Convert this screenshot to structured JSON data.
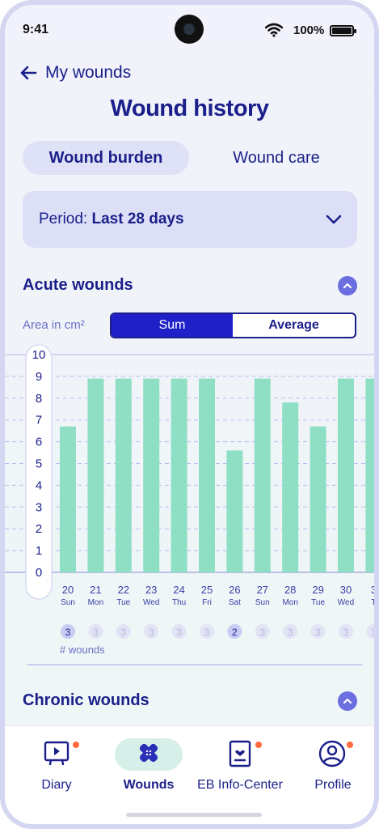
{
  "status_bar": {
    "time": "9:41",
    "battery": "100%"
  },
  "header": {
    "back_label": "My wounds",
    "title": "Wound history"
  },
  "tabs": [
    {
      "label": "Wound burden",
      "active": true
    },
    {
      "label": "Wound care",
      "active": false
    }
  ],
  "period": {
    "prefix": "Period: ",
    "value": "Last 28 days"
  },
  "acute": {
    "title": "Acute wounds",
    "area_label": "Area in cm²",
    "toggle": {
      "sum": "Sum",
      "average": "Average",
      "selected": "Sum"
    },
    "wounds_label": "# wounds"
  },
  "chronic": {
    "title": "Chronic wounds"
  },
  "chart_data": {
    "type": "bar",
    "ylim": [
      0,
      10
    ],
    "yticks": [
      "10",
      "9",
      "8",
      "7",
      "6",
      "5",
      "4",
      "3",
      "2",
      "1",
      "0"
    ],
    "categories": [
      {
        "day": "20",
        "weekday": "Sun"
      },
      {
        "day": "21",
        "weekday": "Mon"
      },
      {
        "day": "22",
        "weekday": "Tue"
      },
      {
        "day": "23",
        "weekday": "Wed"
      },
      {
        "day": "24",
        "weekday": "Thu"
      },
      {
        "day": "25",
        "weekday": "Fri"
      },
      {
        "day": "26",
        "weekday": "Sat"
      },
      {
        "day": "27",
        "weekday": "Sun"
      },
      {
        "day": "28",
        "weekday": "Mon"
      },
      {
        "day": "29",
        "weekday": "Tue"
      },
      {
        "day": "30",
        "weekday": "Wed"
      },
      {
        "day": "3",
        "weekday": "T"
      }
    ],
    "values": [
      6.7,
      8.9,
      8.9,
      8.9,
      8.9,
      8.9,
      5.6,
      8.9,
      7.8,
      6.7,
      8.9,
      8.9
    ],
    "wound_counts": [
      "3",
      "3",
      "3",
      "3",
      "3",
      "3",
      "2",
      "3",
      "3",
      "3",
      "3",
      "3"
    ],
    "highlighted_counts": [
      0,
      6
    ],
    "bar_color": "#8edfc4",
    "grid": true
  },
  "nav": [
    {
      "label": "Diary",
      "icon": "video-diary-icon",
      "badge": true,
      "active": false
    },
    {
      "label": "Wounds",
      "icon": "bandage-icon",
      "badge": false,
      "active": true
    },
    {
      "label": "EB Info-Center",
      "icon": "info-card-icon",
      "badge": true,
      "active": false
    },
    {
      "label": "Profile",
      "icon": "profile-icon",
      "badge": true,
      "active": false
    }
  ],
  "colors": {
    "primary": "#1a1f8a",
    "accent": "#2020c8",
    "badge": "#ff6a3d"
  }
}
